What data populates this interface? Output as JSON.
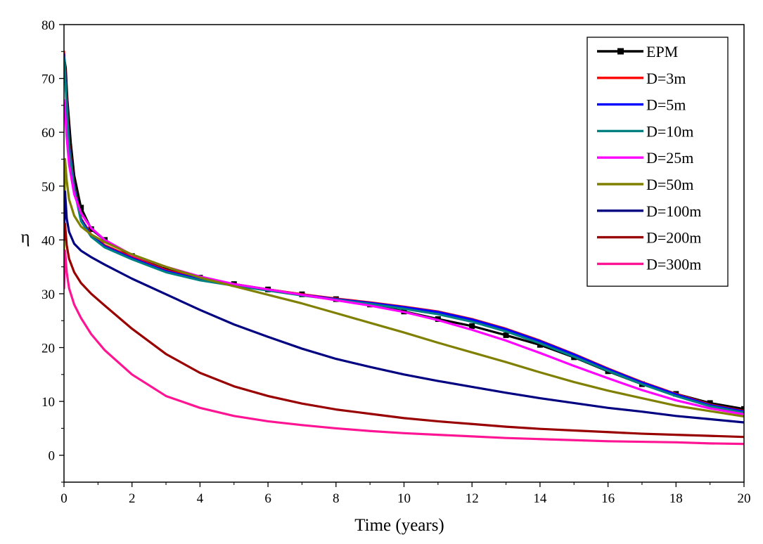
{
  "chart_data": {
    "type": "line",
    "title": "",
    "xlabel": "Time (years)",
    "ylabel": "η",
    "xlim": [
      0,
      20
    ],
    "ylim": [
      -5,
      80
    ],
    "xticks": [
      0,
      2,
      4,
      6,
      8,
      10,
      12,
      14,
      16,
      18,
      20
    ],
    "yticks": [
      0,
      10,
      20,
      30,
      40,
      50,
      60,
      70,
      80
    ],
    "grid": false,
    "legend_position": "top-right",
    "series": [
      {
        "name": "EPM",
        "color": "#000000",
        "marker": "square",
        "x": [
          0,
          0.05,
          0.1,
          0.2,
          0.3,
          0.5,
          0.8,
          1.2,
          2,
          3,
          4,
          5,
          6,
          7,
          8,
          9,
          10,
          11,
          12,
          13,
          14,
          15,
          16,
          17,
          18,
          19,
          20
        ],
        "y": [
          74,
          72,
          66,
          58,
          52,
          46,
          42,
          40,
          37,
          34.5,
          33,
          31.8,
          30.8,
          29.9,
          29,
          28,
          26.7,
          25.3,
          24,
          22.3,
          20.5,
          18.2,
          15.6,
          13.2,
          11.4,
          9.7,
          8.6
        ]
      },
      {
        "name": "D=3m",
        "color": "#ff0000",
        "x": [
          0,
          0.03,
          0.08,
          0.15,
          0.3,
          0.5,
          0.8,
          1.2,
          2,
          3,
          4,
          5,
          6,
          7,
          8,
          9,
          10,
          11,
          12,
          13,
          14,
          15,
          16,
          17,
          18,
          19,
          20
        ],
        "y": [
          75,
          72,
          66,
          58,
          50,
          44,
          41,
          39,
          36.8,
          34.4,
          32.8,
          31.8,
          30.8,
          29.9,
          29.1,
          28.4,
          27.6,
          26.7,
          25.3,
          23.5,
          21.3,
          18.8,
          16.1,
          13.6,
          11.4,
          9.4,
          8.2
        ]
      },
      {
        "name": "D=5m",
        "color": "#0000ff",
        "x": [
          0,
          0.03,
          0.08,
          0.15,
          0.3,
          0.5,
          0.8,
          1.2,
          2,
          3,
          4,
          5,
          6,
          7,
          8,
          9,
          10,
          11,
          12,
          13,
          14,
          15,
          16,
          17,
          18,
          19,
          20
        ],
        "y": [
          74.5,
          71.5,
          65.5,
          57.5,
          49.8,
          43.8,
          40.8,
          38.8,
          36.6,
          34.2,
          32.7,
          31.7,
          30.7,
          29.8,
          29,
          28.3,
          27.5,
          26.6,
          25.2,
          23.4,
          21.2,
          18.7,
          16,
          13.5,
          11.3,
          9.3,
          8.1
        ]
      },
      {
        "name": "D=10m",
        "color": "#008080",
        "x": [
          0,
          0.03,
          0.08,
          0.15,
          0.3,
          0.5,
          0.8,
          1.2,
          2,
          3,
          4,
          5,
          6,
          7,
          8,
          9,
          10,
          11,
          12,
          13,
          14,
          15,
          16,
          17,
          18,
          19,
          20
        ],
        "y": [
          74,
          71,
          65,
          57,
          49.5,
          43.5,
          40.6,
          38.6,
          36.4,
          34,
          32.5,
          31.5,
          30.6,
          29.7,
          28.9,
          28.1,
          27.2,
          26.2,
          24.8,
          23,
          20.8,
          18.3,
          15.7,
          13.2,
          11,
          9.1,
          7.9
        ]
      },
      {
        "name": "D=25m",
        "color": "#ff00ff",
        "x": [
          0,
          0.03,
          0.08,
          0.15,
          0.3,
          0.5,
          0.8,
          1.2,
          2,
          3,
          4,
          5,
          6,
          7,
          8,
          9,
          10,
          11,
          12,
          13,
          14,
          15,
          16,
          17,
          18,
          19,
          20
        ],
        "y": [
          66,
          64,
          59,
          54,
          48.5,
          45,
          42.2,
          40,
          37.2,
          35,
          33.2,
          31.8,
          30.8,
          29.8,
          28.8,
          27.8,
          26.6,
          25.1,
          23.3,
          21.3,
          19,
          16.6,
          14.3,
          12.1,
          10.2,
          8.7,
          7.6
        ]
      },
      {
        "name": "D=50m",
        "color": "#808000",
        "x": [
          0,
          0.03,
          0.08,
          0.15,
          0.3,
          0.5,
          0.8,
          1.2,
          2,
          3,
          4,
          5,
          6,
          7,
          8,
          9,
          10,
          11,
          12,
          13,
          14,
          15,
          16,
          17,
          18,
          19,
          20
        ],
        "y": [
          38,
          55,
          51,
          47.5,
          44.5,
          42.5,
          41,
          39.6,
          37.3,
          35,
          33,
          31.4,
          29.8,
          28.2,
          26.4,
          24.6,
          22.8,
          20.9,
          19.1,
          17.3,
          15.4,
          13.6,
          12,
          10.6,
          9.2,
          8.2,
          7.2
        ]
      },
      {
        "name": "D=100m",
        "color": "#000080",
        "x": [
          0,
          0.03,
          0.08,
          0.15,
          0.3,
          0.5,
          0.8,
          1.2,
          2,
          3,
          4,
          5,
          6,
          7,
          8,
          9,
          10,
          11,
          12,
          13,
          14,
          15,
          16,
          17,
          18,
          19,
          20
        ],
        "y": [
          40,
          49,
          44,
          41.5,
          39.3,
          38,
          36.8,
          35.4,
          32.8,
          29.9,
          27,
          24.3,
          22,
          19.8,
          17.9,
          16.4,
          15,
          13.8,
          12.7,
          11.6,
          10.6,
          9.7,
          8.8,
          8.1,
          7.3,
          6.7,
          6.1
        ]
      },
      {
        "name": "D=200m",
        "color": "#990000",
        "x": [
          0,
          0.03,
          0.08,
          0.15,
          0.3,
          0.5,
          0.8,
          1.2,
          2,
          3,
          4,
          5,
          6,
          7,
          8,
          9,
          10,
          11,
          12,
          13,
          14,
          15,
          16,
          17,
          18,
          19,
          20
        ],
        "y": [
          40,
          43,
          39,
          36.5,
          34,
          32,
          30,
          27.8,
          23.5,
          18.8,
          15.3,
          12.8,
          11,
          9.6,
          8.5,
          7.7,
          6.9,
          6.3,
          5.8,
          5.3,
          4.9,
          4.6,
          4.3,
          4,
          3.8,
          3.6,
          3.4
        ]
      },
      {
        "name": "D=300m",
        "color": "#ff1493",
        "x": [
          0,
          0.03,
          0.08,
          0.15,
          0.3,
          0.5,
          0.8,
          1.2,
          2,
          3,
          4,
          5,
          6,
          7,
          8,
          9,
          10,
          11,
          12,
          13,
          14,
          15,
          16,
          17,
          18,
          19,
          20
        ],
        "y": [
          31,
          38,
          34,
          31,
          28,
          25.5,
          22.5,
          19.5,
          15,
          11,
          8.8,
          7.3,
          6.3,
          5.6,
          5,
          4.5,
          4.1,
          3.8,
          3.5,
          3.2,
          3,
          2.8,
          2.6,
          2.5,
          2.4,
          2.2,
          2.1
        ]
      }
    ]
  }
}
